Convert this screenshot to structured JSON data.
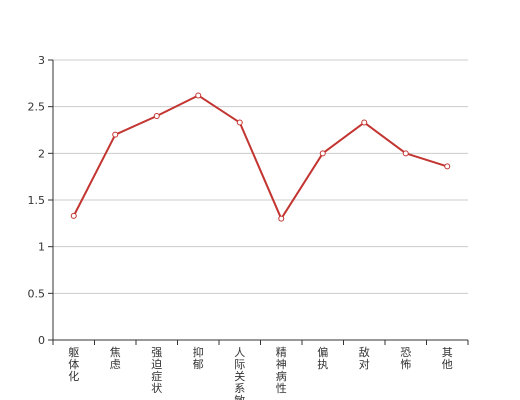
{
  "chart_data": {
    "type": "line",
    "title": "",
    "xlabel": "",
    "ylabel": "",
    "categories": [
      "躯体化",
      "焦虑",
      "强迫症状",
      "抑郁",
      "人际关系敏感",
      "精神病性",
      "偏执",
      "敌对",
      "恐怖",
      "其他"
    ],
    "series": [
      {
        "values": [
          1.33,
          2.2,
          2.4,
          2.62,
          2.33,
          1.3,
          2.0,
          2.33,
          2.0,
          1.86
        ]
      }
    ],
    "ylim": [
      0,
      3
    ],
    "yticks": [
      "0",
      "0.5",
      "1",
      "1.5",
      "2",
      "2.5",
      "3"
    ],
    "grid": true,
    "colors": {
      "line": "#c23531",
      "marker_fill": "#ffffff",
      "grid": "#cccccc",
      "axis": "#333333"
    }
  }
}
